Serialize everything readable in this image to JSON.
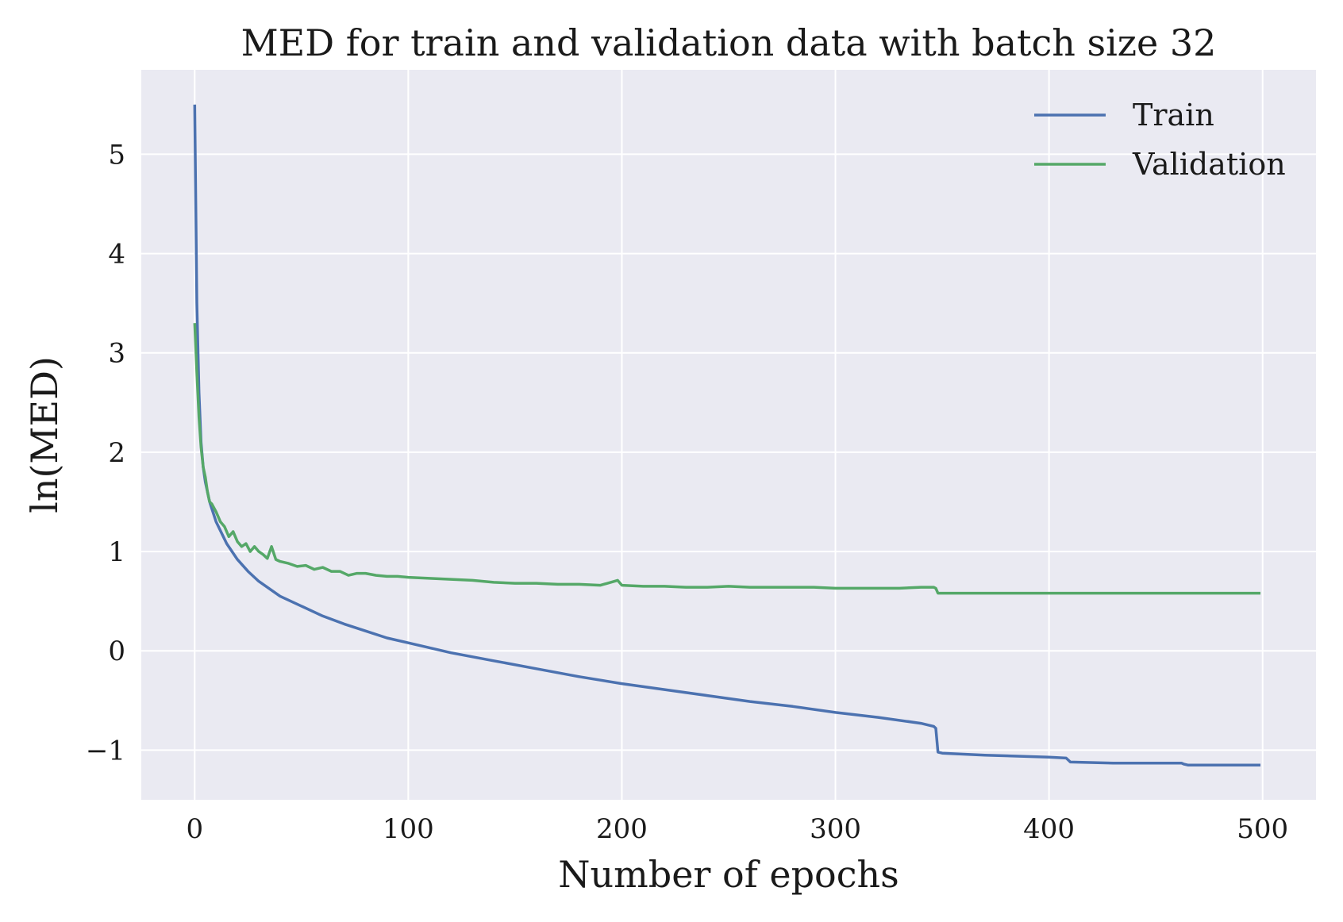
{
  "colors": {
    "plot_background": "#eaeaf2",
    "grid": "#ffffff",
    "train": "#4c72b0",
    "validation": "#55a868"
  },
  "chart_data": {
    "type": "line",
    "title": "MED for train and validation data with batch size 32",
    "xlabel": "Number of epochs",
    "ylabel": "ln(MED)",
    "xlim": [
      -25,
      525
    ],
    "ylim": [
      -1.5,
      5.85
    ],
    "xticks": [
      0,
      100,
      200,
      300,
      400,
      500
    ],
    "xtick_labels": [
      "0",
      "100",
      "200",
      "300",
      "400",
      "500"
    ],
    "yticks": [
      -1,
      0,
      1,
      2,
      3,
      4,
      5
    ],
    "ytick_labels": [
      "−1",
      "0",
      "1",
      "2",
      "3",
      "4",
      "5"
    ],
    "grid": true,
    "legend_position": "top-right",
    "series": [
      {
        "name": "Train",
        "color": "#4c72b0",
        "x": [
          0,
          1,
          2,
          3,
          4,
          5,
          7,
          10,
          15,
          20,
          25,
          30,
          40,
          50,
          60,
          70,
          80,
          90,
          100,
          120,
          140,
          160,
          180,
          200,
          220,
          240,
          260,
          280,
          300,
          320,
          340,
          346,
          347,
          348,
          350,
          370,
          400,
          408,
          409,
          410,
          430,
          462,
          463,
          465,
          499
        ],
        "y": [
          5.5,
          3.5,
          2.6,
          2.1,
          1.85,
          1.7,
          1.5,
          1.3,
          1.08,
          0.92,
          0.8,
          0.7,
          0.55,
          0.45,
          0.35,
          0.27,
          0.2,
          0.13,
          0.08,
          -0.02,
          -0.1,
          -0.18,
          -0.26,
          -0.33,
          -0.39,
          -0.45,
          -0.51,
          -0.56,
          -0.62,
          -0.67,
          -0.73,
          -0.76,
          -0.78,
          -1.02,
          -1.03,
          -1.05,
          -1.07,
          -1.08,
          -1.1,
          -1.12,
          -1.13,
          -1.13,
          -1.14,
          -1.15,
          -1.15
        ]
      },
      {
        "name": "Validation",
        "color": "#55a868",
        "x": [
          0,
          1,
          2,
          3,
          4,
          5,
          6,
          7,
          8,
          10,
          12,
          14,
          16,
          18,
          20,
          22,
          24,
          26,
          28,
          30,
          32,
          34,
          36,
          38,
          40,
          44,
          48,
          52,
          56,
          60,
          64,
          68,
          72,
          76,
          80,
          85,
          90,
          95,
          100,
          110,
          120,
          130,
          140,
          150,
          160,
          170,
          180,
          190,
          198,
          200,
          210,
          220,
          230,
          240,
          250,
          260,
          270,
          280,
          290,
          300,
          310,
          320,
          330,
          340,
          346,
          347,
          348,
          360,
          380,
          400,
          410,
          420,
          440,
          460,
          480,
          499
        ],
        "y": [
          3.3,
          2.8,
          2.35,
          2.05,
          1.85,
          1.75,
          1.6,
          1.5,
          1.48,
          1.4,
          1.3,
          1.25,
          1.15,
          1.2,
          1.1,
          1.05,
          1.08,
          1.0,
          1.05,
          1.0,
          0.97,
          0.93,
          1.05,
          0.92,
          0.9,
          0.88,
          0.85,
          0.86,
          0.82,
          0.84,
          0.8,
          0.8,
          0.76,
          0.78,
          0.78,
          0.76,
          0.75,
          0.75,
          0.74,
          0.73,
          0.72,
          0.71,
          0.69,
          0.68,
          0.68,
          0.67,
          0.67,
          0.66,
          0.71,
          0.66,
          0.65,
          0.65,
          0.64,
          0.64,
          0.65,
          0.64,
          0.64,
          0.64,
          0.64,
          0.63,
          0.63,
          0.63,
          0.63,
          0.64,
          0.64,
          0.63,
          0.58,
          0.58,
          0.58,
          0.58,
          0.58,
          0.58,
          0.58,
          0.58,
          0.58,
          0.58
        ]
      }
    ]
  }
}
